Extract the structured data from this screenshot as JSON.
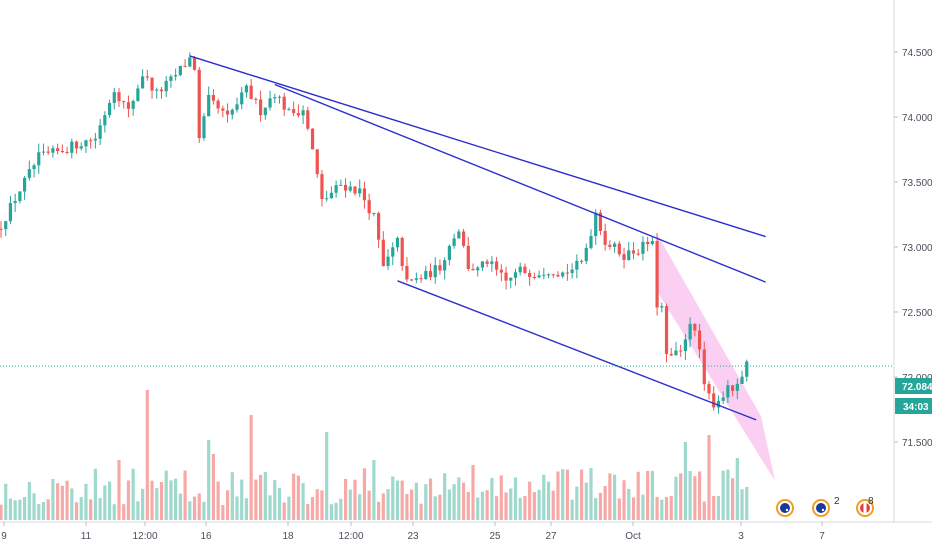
{
  "chart_data": {
    "type": "candlestick",
    "title": "",
    "xlabel": "",
    "ylabel": "",
    "ylim": [
      71.15,
      74.9
    ],
    "y_ticks": [
      "74.500",
      "74.000",
      "73.500",
      "73.000",
      "72.500",
      "72.000",
      "71.500"
    ],
    "x_ticks": [
      "9",
      "11",
      "12:00",
      "16",
      "18",
      "12:00",
      "23",
      "25",
      "27",
      "Oct",
      "3",
      "7"
    ],
    "last_price": "72.084",
    "countdown": "34:03",
    "grid": false,
    "colors": {
      "up": "#26a69a",
      "down": "#ef5350",
      "vol_up": "#9fd8cc",
      "vol_down": "#f6a9a6",
      "trendline": "#2b2fd0",
      "wedge_fill": "#f7a8e8",
      "price_line": "#26a69a",
      "last_label_bg": "#26a69a",
      "timer_bg": "#26a69a"
    },
    "anchors": [
      [
        0,
        73.17
      ],
      [
        4,
        73.44
      ],
      [
        8,
        73.69
      ],
      [
        12,
        73.73
      ],
      [
        16,
        73.79
      ],
      [
        20,
        73.84
      ],
      [
        24,
        74.22
      ],
      [
        27,
        74.04
      ],
      [
        30,
        74.33
      ],
      [
        33,
        74.18
      ],
      [
        36,
        74.28
      ],
      [
        40,
        74.45
      ],
      [
        41,
        74.38
      ],
      [
        42,
        73.82
      ],
      [
        44,
        74.13
      ],
      [
        48,
        73.99
      ],
      [
        52,
        74.21
      ],
      [
        55,
        74.05
      ],
      [
        58,
        74.19
      ],
      [
        61,
        74.03
      ],
      [
        64,
        74.06
      ],
      [
        66,
        73.74
      ],
      [
        68,
        73.35
      ],
      [
        72,
        73.48
      ],
      [
        76,
        73.43
      ],
      [
        79,
        73.23
      ],
      [
        81,
        72.84
      ],
      [
        84,
        73.04
      ],
      [
        86,
        72.72
      ],
      [
        90,
        72.78
      ],
      [
        93,
        72.85
      ],
      [
        96,
        73.09
      ],
      [
        97,
        73.14
      ],
      [
        99,
        72.85
      ],
      [
        101,
        72.82
      ],
      [
        103,
        72.89
      ],
      [
        107,
        72.73
      ],
      [
        110,
        72.82
      ],
      [
        113,
        72.8
      ],
      [
        116,
        72.83
      ],
      [
        119,
        72.8
      ],
      [
        121,
        72.83
      ],
      [
        123,
        72.88
      ],
      [
        125,
        73.12
      ],
      [
        126,
        73.27
      ],
      [
        128,
        73.04
      ],
      [
        132,
        72.94
      ],
      [
        135,
        72.98
      ],
      [
        137,
        73.03
      ],
      [
        138,
        73.01
      ],
      [
        139,
        72.56
      ],
      [
        140,
        72.53
      ],
      [
        141,
        72.15
      ],
      [
        144,
        72.18
      ],
      [
        146,
        72.44
      ],
      [
        148,
        72.21
      ],
      [
        149,
        71.91
      ],
      [
        151,
        71.8
      ],
      [
        152,
        71.83
      ],
      [
        154,
        71.9
      ],
      [
        156,
        71.91
      ],
      [
        158,
        72.08
      ]
    ],
    "trendlines": [
      {
        "from": [
          40,
          74.47
        ],
        "to": [
          162,
          73.08
        ]
      },
      {
        "from": [
          58,
          74.25
        ],
        "to": [
          162,
          72.73
        ]
      },
      {
        "from": [
          84,
          72.74
        ],
        "to": [
          160,
          71.67
        ]
      }
    ],
    "wedge": [
      [
        139,
        73.1
      ],
      [
        161,
        71.7
      ],
      [
        164,
        71.2
      ],
      [
        139,
        72.66
      ]
    ]
  },
  "event_markers": [
    {
      "name": "au-flag-icon",
      "badge": ""
    },
    {
      "name": "au-flag-icon",
      "badge": "2"
    },
    {
      "name": "ca-flag-icon",
      "badge": "8"
    }
  ]
}
